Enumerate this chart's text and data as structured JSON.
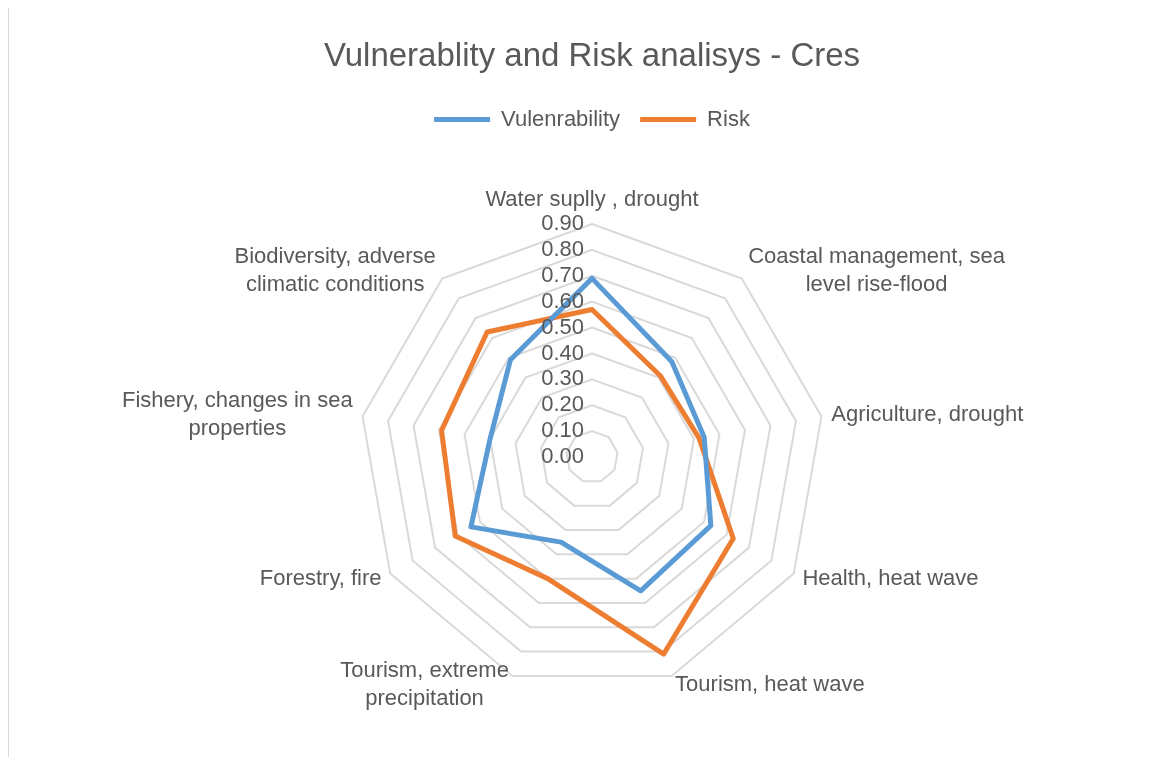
{
  "chart_data": {
    "type": "radar",
    "title": "Vulnerablity and Risk analisys - Cres",
    "categories": [
      "Water suplly , drought",
      "Coastal management, sea level rise-flood",
      "Agriculture, drought",
      "Health, heat wave",
      "Tourism, heat wave",
      "Tourism, extreme precipitation",
      "Forestry, fire",
      "Fishery, changes in sea properties",
      "Biodiversity, adverse climatic conditions"
    ],
    "series": [
      {
        "name": "Vulenrability",
        "color": "#5b9bd5",
        "values": [
          0.69,
          0.48,
          0.44,
          0.53,
          0.55,
          0.35,
          0.54,
          0.4,
          0.49
        ]
      },
      {
        "name": "Risk",
        "color": "#ed7d31",
        "values": [
          0.57,
          0.41,
          0.42,
          0.63,
          0.81,
          0.5,
          0.61,
          0.59,
          0.63
        ]
      }
    ],
    "ylim": [
      0,
      0.9
    ],
    "yticks": [
      {
        "value": 0,
        "label": "0.00"
      },
      {
        "value": 0.1,
        "label": "0.10"
      },
      {
        "value": 0.2,
        "label": "0.20"
      },
      {
        "value": 0.3,
        "label": "0.30"
      },
      {
        "value": 0.4,
        "label": "0.40"
      },
      {
        "value": 0.5,
        "label": "0.50"
      },
      {
        "value": 0.6,
        "label": "0.60"
      },
      {
        "value": 0.7,
        "label": "0.70"
      },
      {
        "value": 0.8,
        "label": "0.80"
      },
      {
        "value": 0.9,
        "label": "0.90"
      }
    ],
    "grid": true,
    "legend": "top",
    "marker": "none",
    "line_style": "solid"
  }
}
